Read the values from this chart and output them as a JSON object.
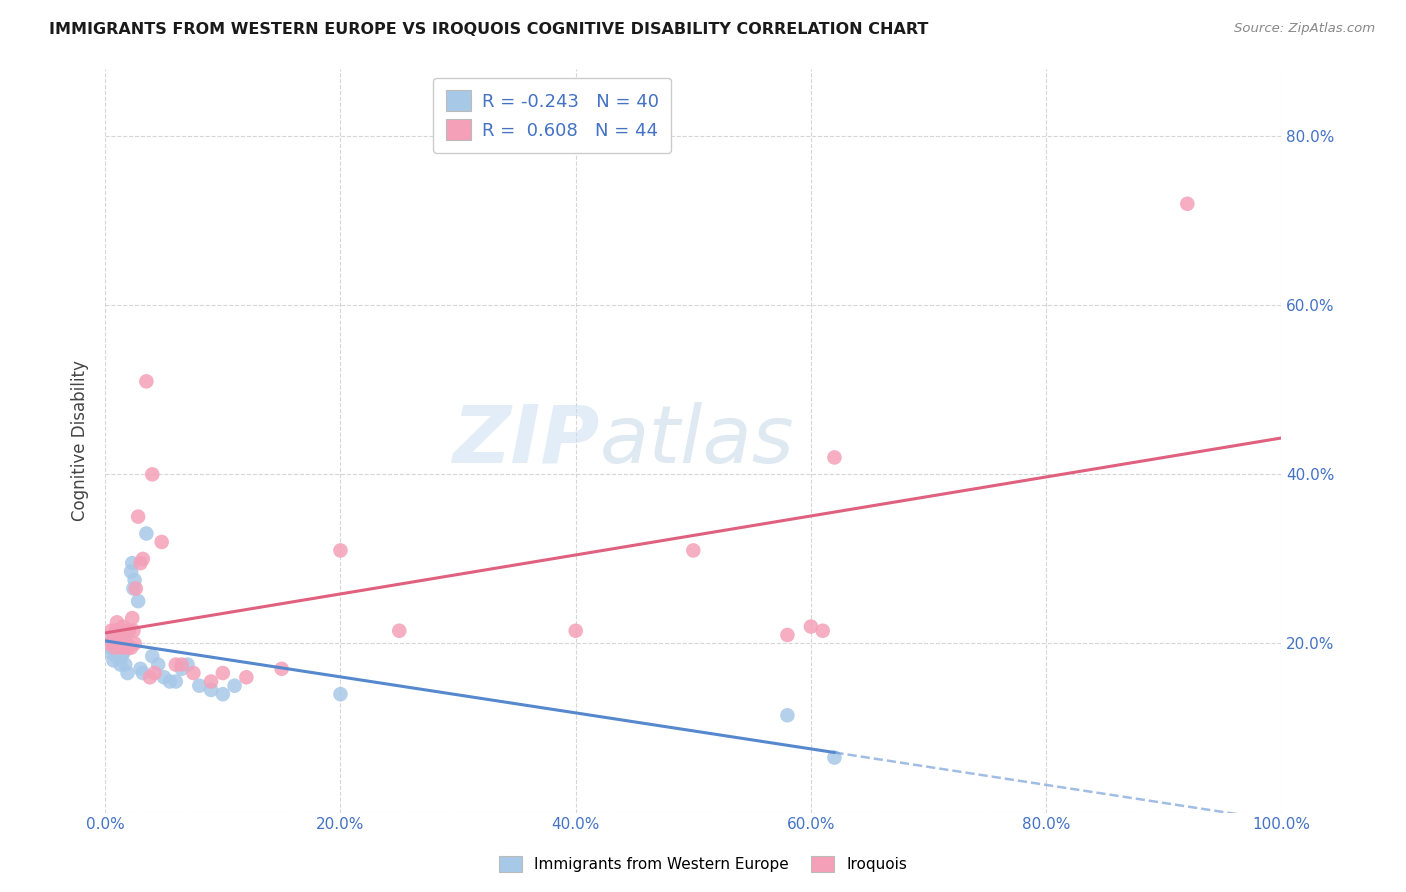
{
  "title": "IMMIGRANTS FROM WESTERN EUROPE VS IROQUOIS COGNITIVE DISABILITY CORRELATION CHART",
  "source": "Source: ZipAtlas.com",
  "ylabel": "Cognitive Disability",
  "xlim": [
    0,
    1.0
  ],
  "ylim": [
    0,
    0.88
  ],
  "xticks": [
    0.0,
    0.2,
    0.4,
    0.6,
    0.8,
    1.0
  ],
  "xtick_labels": [
    "0.0%",
    "20.0%",
    "40.0%",
    "60.0%",
    "80.0%",
    "100.0%"
  ],
  "yticks_right": [
    0.2,
    0.4,
    0.6,
    0.8
  ],
  "ytick_labels_right": [
    "20.0%",
    "40.0%",
    "60.0%",
    "80.0%"
  ],
  "blue_R": "-0.243",
  "blue_N": "40",
  "pink_R": "0.608",
  "pink_N": "44",
  "blue_color": "#a8c8e8",
  "pink_color": "#f4a0b8",
  "blue_line_color": "#5588cc",
  "pink_line_color": "#e06080",
  "legend_label_blue": "Immigrants from Western Europe",
  "legend_label_pink": "Iroquois",
  "blue_x": [
    0.003,
    0.004,
    0.005,
    0.006,
    0.007,
    0.008,
    0.009,
    0.01,
    0.011,
    0.012,
    0.013,
    0.014,
    0.015,
    0.016,
    0.017,
    0.018,
    0.019,
    0.02,
    0.022,
    0.023,
    0.024,
    0.025,
    0.028,
    0.03,
    0.032,
    0.035,
    0.04,
    0.045,
    0.05,
    0.055,
    0.06,
    0.065,
    0.07,
    0.08,
    0.09,
    0.1,
    0.11,
    0.2,
    0.58,
    0.62
  ],
  "blue_y": [
    0.2,
    0.19,
    0.195,
    0.205,
    0.18,
    0.195,
    0.185,
    0.21,
    0.195,
    0.2,
    0.175,
    0.185,
    0.195,
    0.19,
    0.175,
    0.2,
    0.165,
    0.215,
    0.285,
    0.295,
    0.265,
    0.275,
    0.25,
    0.17,
    0.165,
    0.33,
    0.185,
    0.175,
    0.16,
    0.155,
    0.155,
    0.17,
    0.175,
    0.15,
    0.145,
    0.14,
    0.15,
    0.14,
    0.115,
    0.065
  ],
  "pink_x": [
    0.003,
    0.005,
    0.007,
    0.008,
    0.009,
    0.01,
    0.011,
    0.012,
    0.013,
    0.014,
    0.015,
    0.016,
    0.018,
    0.019,
    0.02,
    0.022,
    0.023,
    0.024,
    0.025,
    0.026,
    0.028,
    0.03,
    0.032,
    0.035,
    0.038,
    0.04,
    0.042,
    0.048,
    0.06,
    0.065,
    0.075,
    0.09,
    0.1,
    0.12,
    0.15,
    0.2,
    0.25,
    0.4,
    0.5,
    0.58,
    0.6,
    0.61,
    0.62,
    0.92
  ],
  "pink_y": [
    0.2,
    0.215,
    0.205,
    0.195,
    0.215,
    0.225,
    0.2,
    0.215,
    0.2,
    0.195,
    0.22,
    0.215,
    0.2,
    0.195,
    0.215,
    0.195,
    0.23,
    0.215,
    0.2,
    0.265,
    0.35,
    0.295,
    0.3,
    0.51,
    0.16,
    0.4,
    0.165,
    0.32,
    0.175,
    0.175,
    0.165,
    0.155,
    0.165,
    0.16,
    0.17,
    0.31,
    0.215,
    0.215,
    0.31,
    0.21,
    0.22,
    0.215,
    0.42,
    0.72
  ],
  "watermark_zip": "ZIP",
  "watermark_atlas": "atlas",
  "background_color": "#ffffff",
  "grid_color": "#cccccc"
}
